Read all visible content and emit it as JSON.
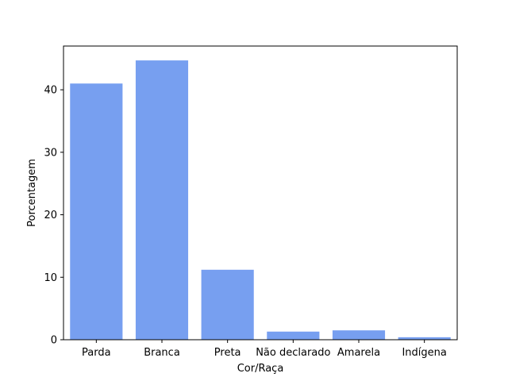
{
  "chart_data": {
    "type": "bar",
    "categories": [
      "Parda",
      "Branca",
      "Preta",
      "Não declarado",
      "Amarela",
      "Indígena"
    ],
    "values": [
      41.0,
      44.7,
      11.2,
      1.3,
      1.5,
      0.4
    ],
    "xlabel": "Cor/Raça",
    "ylabel": "Porcentagem",
    "ylim": [
      0,
      47
    ],
    "yticks": [
      0,
      10,
      20,
      30,
      40
    ],
    "grid": false,
    "colors": {
      "bar": "#779ff0",
      "axis": "#000000"
    }
  }
}
